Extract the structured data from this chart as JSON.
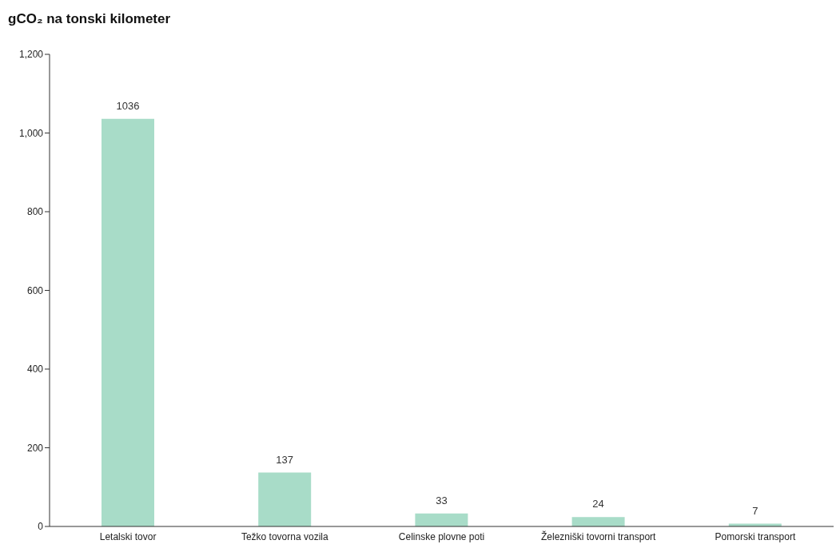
{
  "chart_data": {
    "type": "bar",
    "title": "gCO₂ na tonski kilometer",
    "categories": [
      "Letalski tovor",
      "Težko tovorna vozila",
      "Celinske plovne poti",
      "Železniški tovorni transport",
      "Pomorski transport"
    ],
    "values": [
      1036,
      137,
      33,
      24,
      7
    ],
    "color": "#a8dcc8",
    "ylim": [
      0,
      1200
    ],
    "yticks": [
      0,
      200,
      400,
      600,
      800,
      {
        "value": 1000,
        "label": "1,000"
      },
      {
        "value": 1200,
        "label": "1,200"
      }
    ],
    "grid": false,
    "data_labels": true
  }
}
